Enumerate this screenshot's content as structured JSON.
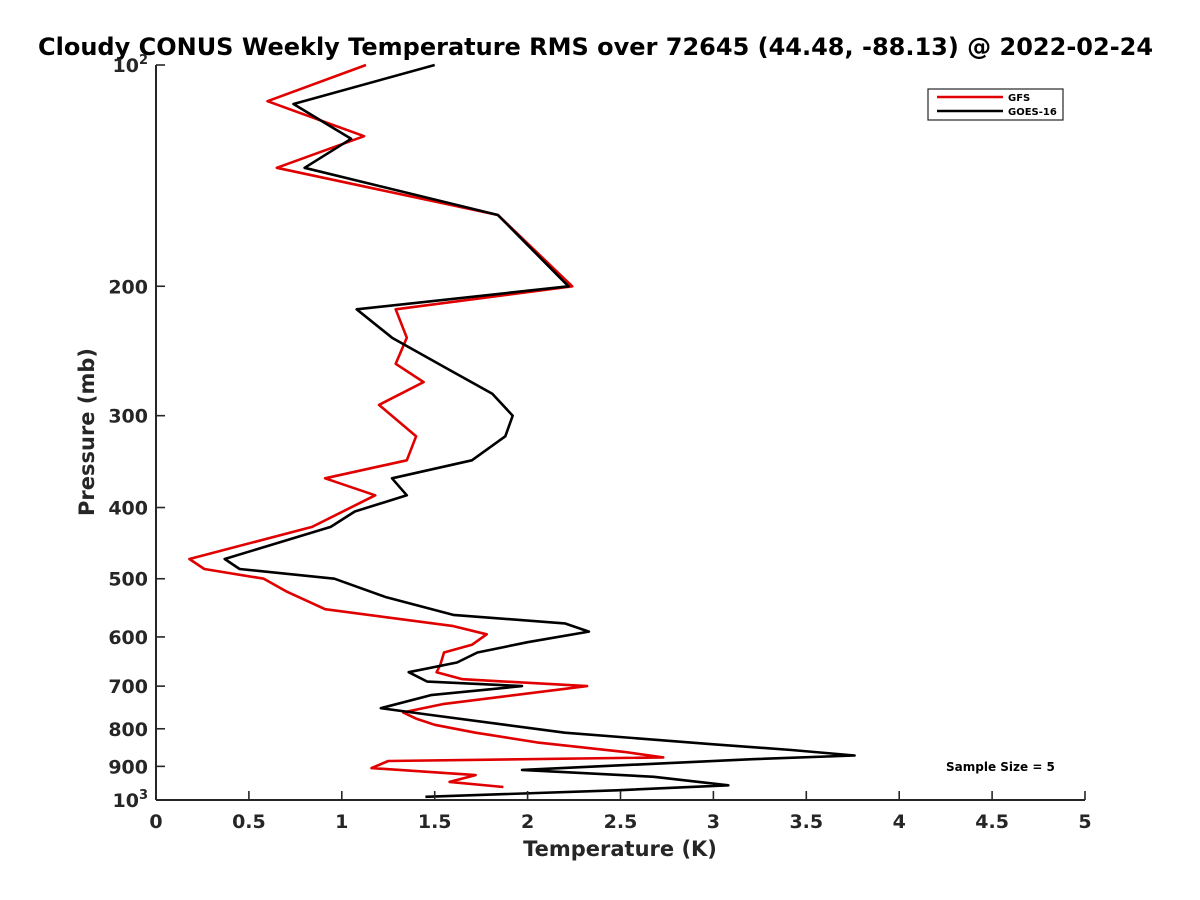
{
  "chart_data": {
    "type": "line",
    "title": "Cloudy CONUS Weekly Temperature RMS over 72645 (44.48, -88.13) @ 2022-02-24",
    "xlabel": "Temperature (K)",
    "ylabel": "Pressure (mb)",
    "xlim": [
      0,
      5
    ],
    "ylim": [
      100,
      1000
    ],
    "yscale": "log",
    "y_reversed": true,
    "grid": false,
    "legend_position": "top-right",
    "x_ticks": [
      "0",
      "0.5",
      "1",
      "1.5",
      "2",
      "2.5",
      "3",
      "3.5",
      "4",
      "4.5",
      "5"
    ],
    "y_ticks": [
      {
        "value": 100,
        "base": "10",
        "exp": "2"
      },
      {
        "value": 200,
        "label": "200"
      },
      {
        "value": 300,
        "label": "300"
      },
      {
        "value": 400,
        "label": "400"
      },
      {
        "value": 500,
        "label": "500"
      },
      {
        "value": 600,
        "label": "600"
      },
      {
        "value": 700,
        "label": "700"
      },
      {
        "value": 800,
        "label": "800"
      },
      {
        "value": 900,
        "label": "900"
      },
      {
        "value": 1000,
        "base": "10",
        "exp": "3"
      }
    ],
    "annotation": "Sample Size = 5",
    "series": [
      {
        "name": "GFS",
        "color": "#e00000",
        "x": [
          1.13,
          0.6,
          1.12,
          0.65,
          1.84,
          2.24,
          1.29,
          1.35,
          1.29,
          1.44,
          1.2,
          1.4,
          1.35,
          0.91,
          1.18,
          0.84,
          0.18,
          0.26,
          0.58,
          0.7,
          0.91,
          1.6,
          1.78,
          1.7,
          1.55,
          1.53,
          1.51,
          1.65,
          2.32,
          1.55,
          1.33,
          1.4,
          1.5,
          1.72,
          2.05,
          2.52,
          2.73,
          1.25,
          1.16,
          1.72,
          1.58,
          1.87
        ],
        "y": [
          100,
          112,
          125,
          138,
          160,
          200,
          215,
          235,
          255,
          270,
          290,
          320,
          345,
          365,
          385,
          425,
          470,
          485,
          500,
          520,
          550,
          580,
          595,
          615,
          630,
          655,
          670,
          685,
          700,
          740,
          760,
          775,
          790,
          810,
          835,
          860,
          875,
          885,
          905,
          925,
          945,
          960
        ]
      },
      {
        "name": "GOES-16",
        "color": "#000000",
        "x": [
          1.5,
          0.74,
          1.05,
          0.8,
          1.84,
          2.22,
          1.08,
          1.27,
          1.58,
          1.81,
          1.92,
          1.88,
          1.7,
          1.27,
          1.35,
          1.07,
          0.94,
          0.37,
          0.45,
          0.96,
          1.24,
          1.6,
          2.2,
          2.33,
          2.0,
          1.73,
          1.62,
          1.36,
          1.46,
          1.97,
          1.48,
          1.21,
          1.46,
          1.88,
          2.2,
          3.0,
          3.42,
          3.76,
          3.21,
          1.97,
          2.68,
          3.08,
          2.48,
          1.45
        ],
        "y": [
          100,
          113,
          126,
          138,
          160,
          200,
          215,
          235,
          260,
          280,
          300,
          320,
          345,
          365,
          385,
          405,
          425,
          470,
          485,
          500,
          530,
          560,
          575,
          590,
          610,
          630,
          650,
          670,
          690,
          700,
          720,
          750,
          765,
          790,
          810,
          840,
          855,
          870,
          880,
          910,
          930,
          955,
          970,
          990
        ]
      }
    ]
  }
}
